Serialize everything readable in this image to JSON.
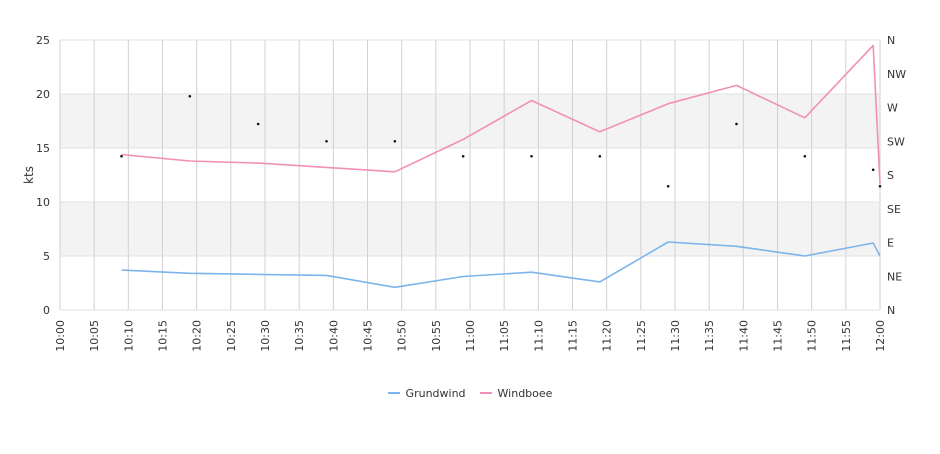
{
  "chart_data": {
    "type": "line",
    "ylabel": "kts",
    "ylim": [
      0,
      25
    ],
    "yticks": [
      "0",
      "5",
      "10",
      "15",
      "20",
      "25"
    ],
    "xlim": [
      "10:00",
      "12:00"
    ],
    "xticks": [
      "10:00",
      "10:05",
      "10:10",
      "10:15",
      "10:20",
      "10:25",
      "10:30",
      "10:35",
      "10:40",
      "10:45",
      "10:50",
      "10:55",
      "11:00",
      "11:05",
      "11:10",
      "11:15",
      "11:20",
      "11:25",
      "11:30",
      "11:35",
      "11:40",
      "11:45",
      "11:50",
      "11:55",
      "12:00"
    ],
    "right_axis": {
      "labels": [
        "N",
        "NE",
        "E",
        "SE",
        "S",
        "SW",
        "W",
        "NW",
        "N"
      ],
      "degrees": [
        0,
        45,
        90,
        135,
        180,
        225,
        270,
        315,
        360
      ]
    },
    "grid": true,
    "banded_ranges": [
      [
        5,
        10
      ],
      [
        15,
        20
      ]
    ],
    "legend_position": "bottom-center",
    "series": [
      {
        "name": "Grundwind",
        "color": "#7cb5ec",
        "x": [
          "10:09",
          "10:19",
          "10:29",
          "10:39",
          "10:49",
          "10:59",
          "11:09",
          "11:19",
          "11:29",
          "11:39",
          "11:49",
          "11:59",
          "12:00"
        ],
        "values": [
          3.7,
          3.4,
          3.3,
          3.2,
          2.1,
          3.1,
          3.5,
          2.6,
          6.3,
          5.9,
          5.0,
          6.2,
          5.0
        ]
      },
      {
        "name": "Windboee",
        "color": "#f28fb8",
        "x": [
          "10:09",
          "10:19",
          "10:29",
          "10:39",
          "10:49",
          "10:59",
          "11:09",
          "11:19",
          "11:29",
          "11:39",
          "11:49",
          "11:59",
          "12:00"
        ],
        "values": [
          14.4,
          13.8,
          13.6,
          13.2,
          12.8,
          15.8,
          19.4,
          16.5,
          19.1,
          20.8,
          17.8,
          24.5,
          11.7
        ]
      }
    ],
    "direction_points": {
      "x": [
        "10:09",
        "10:19",
        "10:29",
        "10:39",
        "10:49",
        "10:59",
        "11:09",
        "11:19",
        "11:29",
        "11:39",
        "11:49",
        "11:59",
        "12:00"
      ],
      "degrees": [
        205,
        285,
        248,
        225,
        225,
        205,
        205,
        205,
        165,
        248,
        205,
        187,
        165
      ]
    }
  }
}
